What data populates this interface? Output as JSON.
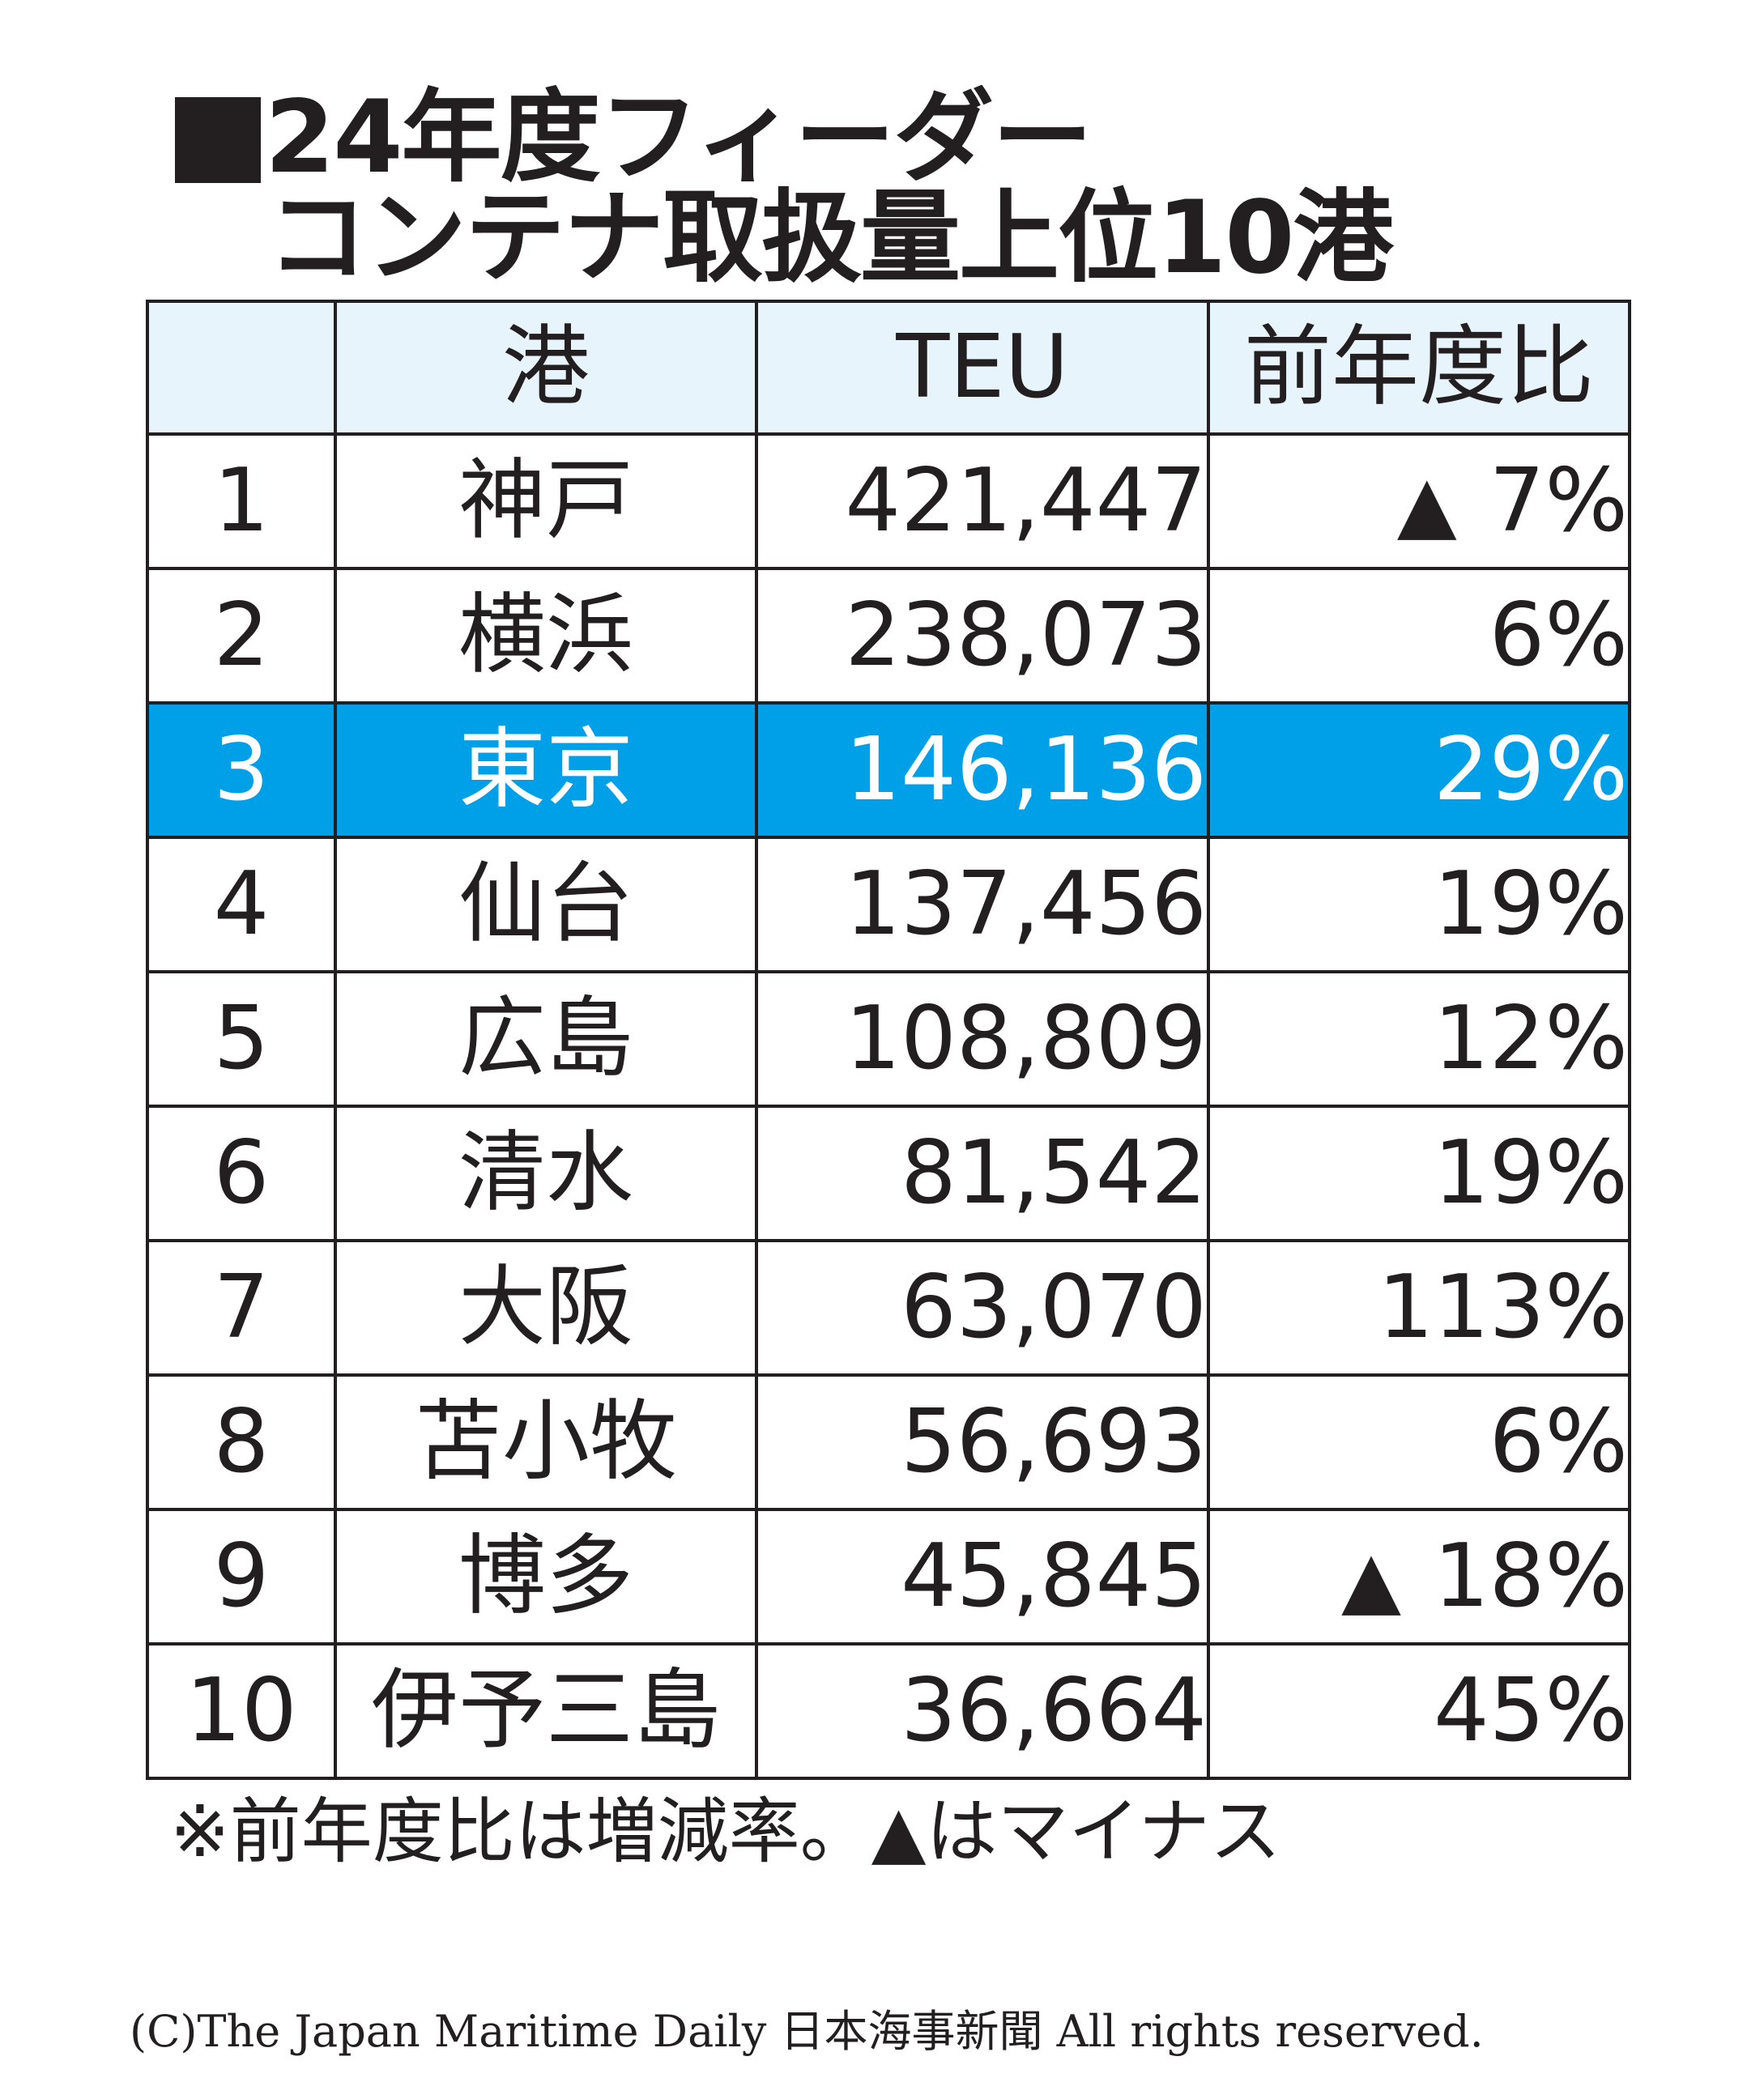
{
  "title": {
    "line1": "24年度フィーダー",
    "line2": "コンテナ取扱量上位10港"
  },
  "table": {
    "headers": [
      "",
      "港",
      "TEU",
      "前年度比"
    ],
    "rows": [
      {
        "rank": "1",
        "port": "神戸",
        "teu": "421,447",
        "neg_mark": "▲",
        "change": "7%"
      },
      {
        "rank": "2",
        "port": "横浜",
        "teu": "238,073",
        "neg_mark": "",
        "change": "6%"
      },
      {
        "rank": "3",
        "port": "東京",
        "teu": "146,136",
        "neg_mark": "",
        "change": "29%"
      },
      {
        "rank": "4",
        "port": "仙台",
        "teu": "137,456",
        "neg_mark": "",
        "change": "19%"
      },
      {
        "rank": "5",
        "port": "広島",
        "teu": "108,809",
        "neg_mark": "",
        "change": "12%"
      },
      {
        "rank": "6",
        "port": "清水",
        "teu": "81,542",
        "neg_mark": "",
        "change": "19%"
      },
      {
        "rank": "7",
        "port": "大阪",
        "teu": "63,070",
        "neg_mark": "",
        "change": "113%"
      },
      {
        "rank": "8",
        "port": "苫小牧",
        "teu": "56,693",
        "neg_mark": "",
        "change": "6%"
      },
      {
        "rank": "9",
        "port": "博多",
        "teu": "45,845",
        "neg_mark": "▲",
        "change": "18%"
      },
      {
        "rank": "10",
        "port": "伊予三島",
        "teu": "36,664",
        "neg_mark": "",
        "change": "45%"
      }
    ]
  },
  "chart_data": {
    "type": "table",
    "columns": [
      "",
      "港",
      "TEU",
      "前年度比"
    ],
    "rows": [
      [
        1,
        "神戸",
        421447,
        -7
      ],
      [
        2,
        "横浜",
        238073,
        6
      ],
      [
        3,
        "東京",
        146136,
        29
      ],
      [
        4,
        "仙台",
        137456,
        19
      ],
      [
        5,
        "広島",
        108809,
        12
      ],
      [
        6,
        "清水",
        81542,
        19
      ],
      [
        7,
        "大阪",
        63070,
        113
      ],
      [
        8,
        "苫小牧",
        56693,
        6
      ],
      [
        9,
        "博多",
        45845,
        -18
      ],
      [
        10,
        "伊予三島",
        36664,
        45
      ]
    ],
    "highlighted_row_rank": 3
  },
  "colors": {
    "highlight_row": "#00a0e9",
    "header_bg": "#e8f4fc",
    "text": "#231f20"
  },
  "note": "※前年度比は増減率。▲はマイナス",
  "copyright": "(C)The Japan Maritime Daily 日本海事新聞 All rights reserved."
}
